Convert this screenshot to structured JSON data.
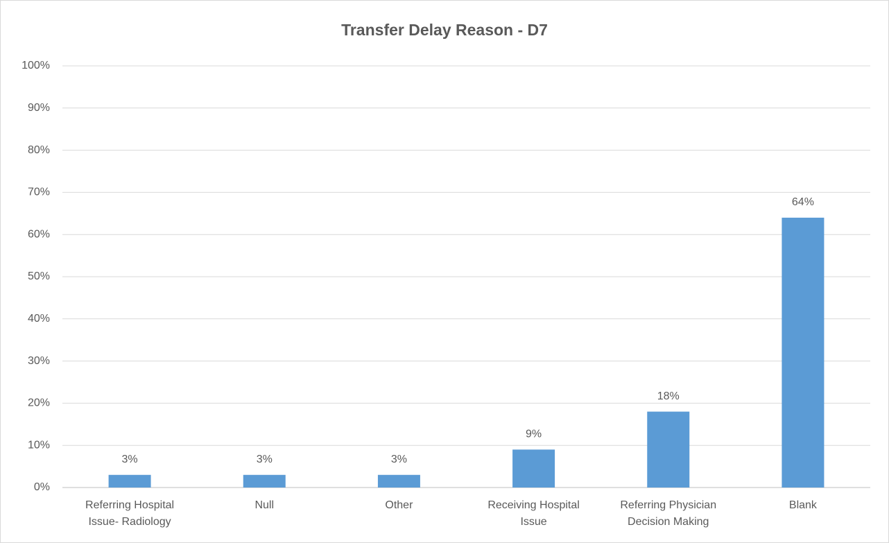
{
  "chart_data": {
    "type": "bar",
    "title": "Transfer Delay Reason - D7",
    "categories": [
      "Referring Hospital Issue- Radiology",
      "Null",
      "Other",
      "Receiving Hospital Issue",
      "Referring Physician Decision Making",
      "Blank"
    ],
    "values": [
      3,
      3,
      3,
      9,
      18,
      64
    ],
    "value_labels": [
      "3%",
      "3%",
      "3%",
      "9%",
      "18%",
      "64%"
    ],
    "color": "#5b9bd5",
    "ylim": [
      0,
      100
    ],
    "yticks": [
      {
        "value": 0,
        "label": "0%"
      },
      {
        "value": 10,
        "label": "10%"
      },
      {
        "value": 20,
        "label": "20%"
      },
      {
        "value": 30,
        "label": "30%"
      },
      {
        "value": 40,
        "label": "40%"
      },
      {
        "value": 50,
        "label": "50%"
      },
      {
        "value": 60,
        "label": "60%"
      },
      {
        "value": 70,
        "label": "70%"
      },
      {
        "value": 80,
        "label": "80%"
      },
      {
        "value": 90,
        "label": "90%"
      },
      {
        "value": 100,
        "label": "100%"
      }
    ],
    "grid": true
  }
}
